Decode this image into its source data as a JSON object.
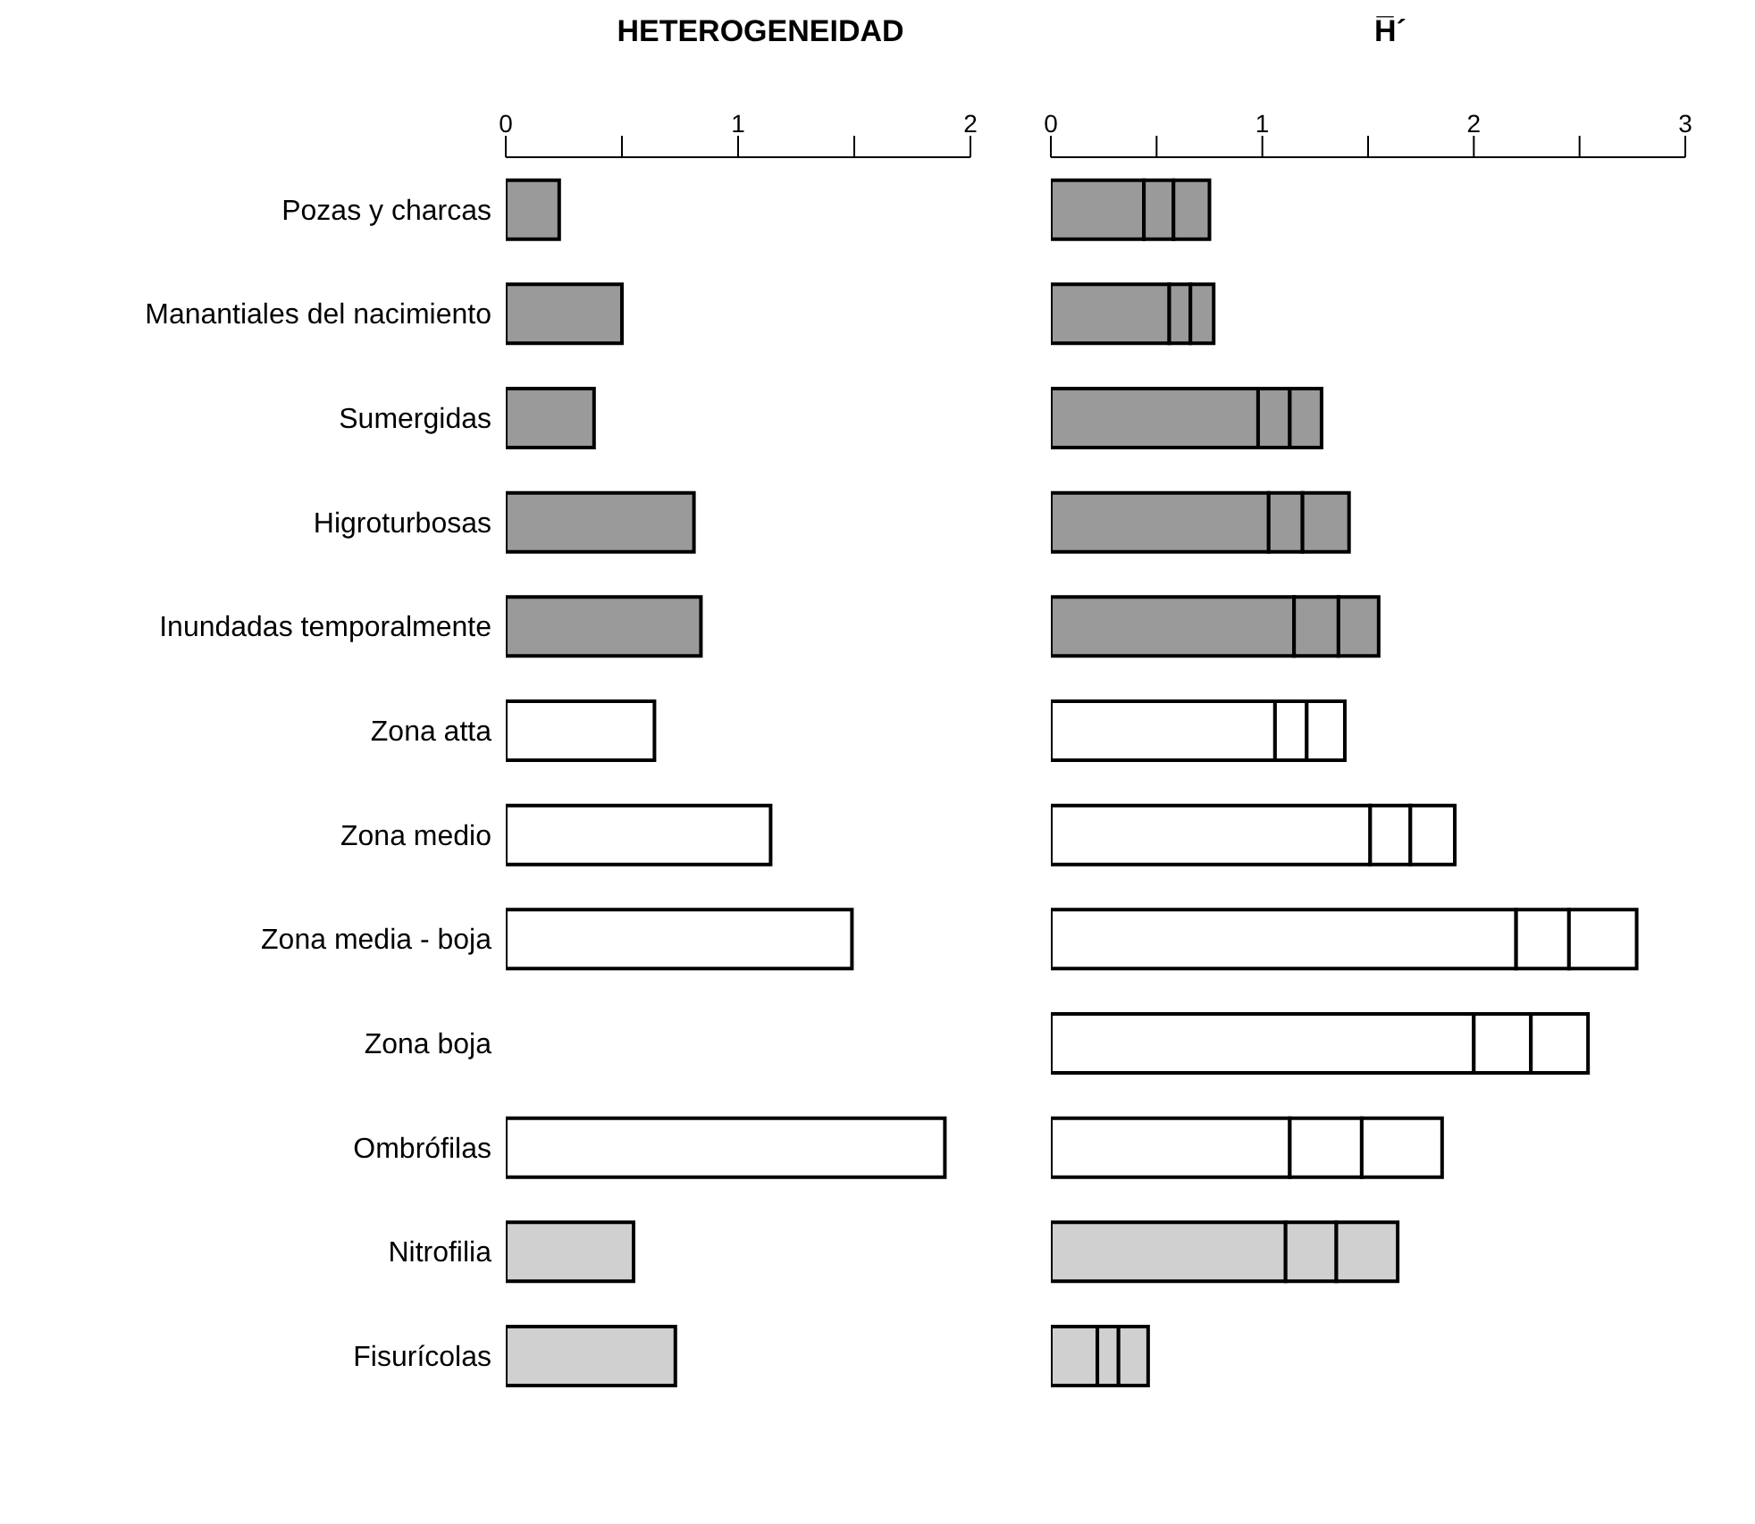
{
  "chart_data": [
    {
      "type": "bar",
      "orientation": "horizontal",
      "title": "HETEROGENEIDAD",
      "categories": [
        "Pozas y charcas",
        "Manantiales del nacimiento",
        "Sumergidas",
        "Higroturbosas",
        "Inundadas temporalmente",
        "Zona atta",
        "Zona medio",
        "Zona media - boja",
        "Zona boja",
        "Ombrófilas",
        "Nitrofilia",
        "Fisurícolas"
      ],
      "values": [
        0.23,
        0.5,
        0.38,
        0.81,
        0.84,
        0.64,
        1.14,
        1.49,
        null,
        1.89,
        0.55,
        0.73
      ],
      "colors": [
        "#9a9a9a",
        "#9a9a9a",
        "#9a9a9a",
        "#9a9a9a",
        "#9a9a9a",
        "#ffffff",
        "#ffffff",
        "#ffffff",
        "#ffffff",
        "#ffffff",
        "#d0d0d0",
        "#d0d0d0"
      ],
      "xlim": [
        0,
        2
      ],
      "xticks": [
        0,
        {
          "value": 0.5,
          "label": null
        },
        1,
        {
          "value": 1.5,
          "label": null
        },
        2
      ]
    },
    {
      "type": "bar",
      "orientation": "horizontal",
      "stacked": true,
      "title": "H̅´",
      "tick_labels": "x",
      "categories": [
        null,
        null,
        null,
        null,
        null,
        null,
        null,
        null,
        null,
        null,
        null,
        null
      ],
      "series": [
        {
          "colors": [
            "#9a9a9a",
            "#9a9a9a",
            "#9a9a9a",
            "#9a9a9a",
            "#9a9a9a",
            "#ffffff",
            "#ffffff",
            "#ffffff",
            "#ffffff",
            "#ffffff",
            "#d0d0d0",
            "#d0d0d0"
          ],
          "values": [
            0.44,
            0.56,
            0.98,
            1.03,
            1.15,
            1.06,
            1.51,
            2.2,
            2.0,
            1.13,
            1.11,
            0.22
          ]
        },
        {
          "colors": [
            "#9a9a9a",
            "#9a9a9a",
            "#9a9a9a",
            "#9a9a9a",
            "#9a9a9a",
            "#ffffff",
            "#ffffff",
            "#ffffff",
            "#ffffff",
            "#ffffff",
            "#d0d0d0",
            "#d0d0d0"
          ],
          "values": [
            0.14,
            0.1,
            0.15,
            0.16,
            0.21,
            0.15,
            0.19,
            0.25,
            0.27,
            0.34,
            0.24,
            0.1
          ]
        },
        {
          "colors": [
            "#9a9a9a",
            "#9a9a9a",
            "#9a9a9a",
            "#9a9a9a",
            "#9a9a9a",
            "#ffffff",
            "#ffffff",
            "#ffffff",
            "#ffffff",
            "#ffffff",
            "#d0d0d0",
            "#d0d0d0"
          ],
          "values": [
            0.17,
            0.11,
            0.15,
            0.22,
            0.19,
            0.18,
            0.21,
            0.32,
            0.27,
            0.38,
            0.29,
            0.14
          ]
        }
      ],
      "xlim": [
        0,
        3
      ],
      "xticks": [
        0,
        {
          "value": 0.5,
          "label": null
        },
        1,
        {
          "value": 1.5,
          "label": null
        },
        2,
        {
          "value": 2.5,
          "label": null
        },
        3
      ]
    }
  ]
}
